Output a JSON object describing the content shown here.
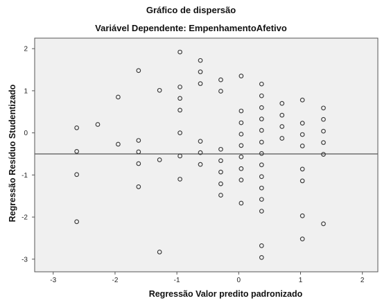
{
  "chart_data": {
    "type": "scatter",
    "title": "Gráfico de dispersão",
    "subtitle": "Variável Dependente: EmpenhamentoAfetivo",
    "xlabel": "Regressão Valor predito padronizado",
    "ylabel": "Regressão Resíduo Studentizado",
    "xlim": [
      -3.3,
      2.25
    ],
    "ylim": [
      -3.3,
      2.25
    ],
    "xticks": [
      -3,
      -2,
      -1,
      0,
      1,
      2
    ],
    "yticks": [
      -3,
      -2,
      -1,
      0,
      1,
      2
    ],
    "grid": false,
    "plot_background": "#f0f0f0",
    "marker_color": "#333333",
    "reference_line_y": -0.5,
    "points": [
      {
        "x": -2.62,
        "y": 0.12
      },
      {
        "x": -2.62,
        "y": -0.44
      },
      {
        "x": -2.62,
        "y": -0.99
      },
      {
        "x": -2.62,
        "y": -2.11
      },
      {
        "x": -2.28,
        "y": 0.2
      },
      {
        "x": -1.95,
        "y": 0.85
      },
      {
        "x": -1.95,
        "y": -0.27
      },
      {
        "x": -1.62,
        "y": 1.48
      },
      {
        "x": -1.62,
        "y": -0.18
      },
      {
        "x": -1.62,
        "y": -0.45
      },
      {
        "x": -1.62,
        "y": -0.73
      },
      {
        "x": -1.62,
        "y": -1.28
      },
      {
        "x": -1.28,
        "y": 1.01
      },
      {
        "x": -1.28,
        "y": -0.64
      },
      {
        "x": -1.28,
        "y": -2.83
      },
      {
        "x": -0.95,
        "y": 1.92
      },
      {
        "x": -0.95,
        "y": 1.09
      },
      {
        "x": -0.95,
        "y": 0.82
      },
      {
        "x": -0.95,
        "y": 0.54
      },
      {
        "x": -0.95,
        "y": 0.0
      },
      {
        "x": -0.95,
        "y": -0.55
      },
      {
        "x": -0.95,
        "y": -1.1
      },
      {
        "x": -0.62,
        "y": 1.72
      },
      {
        "x": -0.62,
        "y": 1.45
      },
      {
        "x": -0.62,
        "y": 1.17
      },
      {
        "x": -0.62,
        "y": -0.2
      },
      {
        "x": -0.62,
        "y": -0.47
      },
      {
        "x": -0.62,
        "y": -0.75
      },
      {
        "x": -0.29,
        "y": 1.26
      },
      {
        "x": -0.29,
        "y": 0.99
      },
      {
        "x": -0.29,
        "y": -0.39
      },
      {
        "x": -0.29,
        "y": -0.66
      },
      {
        "x": -0.29,
        "y": -0.93
      },
      {
        "x": -0.29,
        "y": -1.21
      },
      {
        "x": -0.29,
        "y": -1.48
      },
      {
        "x": 0.04,
        "y": 1.35
      },
      {
        "x": 0.04,
        "y": 0.52
      },
      {
        "x": 0.04,
        "y": 0.24
      },
      {
        "x": 0.04,
        "y": -0.03
      },
      {
        "x": 0.04,
        "y": -0.3
      },
      {
        "x": 0.04,
        "y": -0.57
      },
      {
        "x": 0.04,
        "y": -0.85
      },
      {
        "x": 0.04,
        "y": -1.12
      },
      {
        "x": 0.04,
        "y": -1.67
      },
      {
        "x": 0.37,
        "y": 1.16
      },
      {
        "x": 0.37,
        "y": 0.88
      },
      {
        "x": 0.37,
        "y": 0.6
      },
      {
        "x": 0.37,
        "y": 0.33
      },
      {
        "x": 0.37,
        "y": 0.06
      },
      {
        "x": 0.37,
        "y": -0.22
      },
      {
        "x": 0.37,
        "y": -0.49
      },
      {
        "x": 0.37,
        "y": -0.76
      },
      {
        "x": 0.37,
        "y": -1.04
      },
      {
        "x": 0.37,
        "y": -1.31
      },
      {
        "x": 0.37,
        "y": -1.58
      },
      {
        "x": 0.37,
        "y": -1.86
      },
      {
        "x": 0.37,
        "y": -2.68
      },
      {
        "x": 0.37,
        "y": -2.96
      },
      {
        "x": 0.7,
        "y": 0.7
      },
      {
        "x": 0.7,
        "y": 0.42
      },
      {
        "x": 0.7,
        "y": 0.15
      },
      {
        "x": 0.7,
        "y": -0.13
      },
      {
        "x": 1.03,
        "y": 0.78
      },
      {
        "x": 1.03,
        "y": 0.23
      },
      {
        "x": 1.03,
        "y": -0.04
      },
      {
        "x": 1.03,
        "y": -0.31
      },
      {
        "x": 1.03,
        "y": -0.86
      },
      {
        "x": 1.03,
        "y": -1.14
      },
      {
        "x": 1.03,
        "y": -1.97
      },
      {
        "x": 1.03,
        "y": -2.52
      },
      {
        "x": 1.37,
        "y": 0.59
      },
      {
        "x": 1.37,
        "y": 0.32
      },
      {
        "x": 1.37,
        "y": 0.04
      },
      {
        "x": 1.37,
        "y": -0.23
      },
      {
        "x": 1.37,
        "y": -0.51
      },
      {
        "x": 1.37,
        "y": -2.16
      }
    ]
  }
}
